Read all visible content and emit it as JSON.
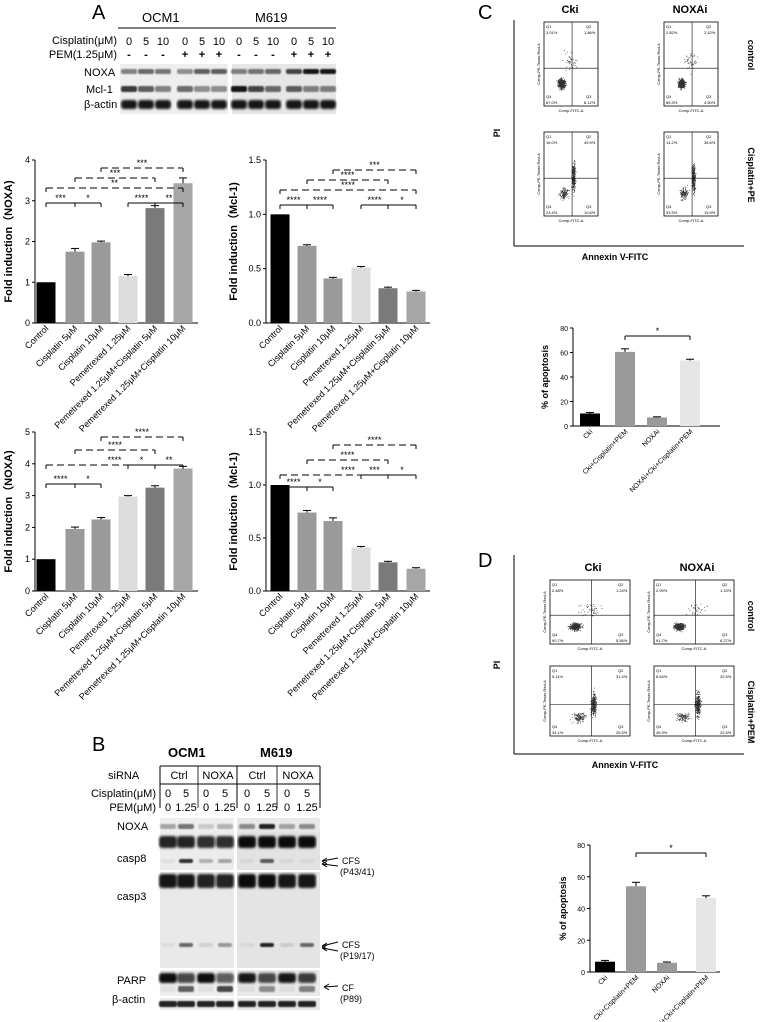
{
  "panel_A": {
    "letter": "A",
    "cell_lines": [
      "OCM1",
      "M619"
    ],
    "row_labels": {
      "cisplatin": "Cisplatin(μM)",
      "pem": "PEM(1.25μM)"
    },
    "cisplatin_values": [
      "0",
      "5",
      "10",
      "0",
      "5",
      "10",
      "0",
      "5",
      "10",
      "0",
      "5",
      "10"
    ],
    "pem_values": [
      "-",
      "-",
      "-",
      "+",
      "+",
      "+",
      "-",
      "-",
      "-",
      "+",
      "+",
      "+"
    ],
    "blot_labels": [
      "NOXA",
      "Mcl-1",
      "β-actin"
    ]
  },
  "panel_B": {
    "letter": "B",
    "cell_lines": [
      "OCM1",
      "M619"
    ],
    "sirna_label": "siRNA",
    "sirna_groups": [
      "Ctrl",
      "NOXA",
      "Ctrl",
      "NOXA"
    ],
    "cisplatin_label": "Cisplatin(μM)",
    "pem_label": "PEM(μM)",
    "cisplatin_values": [
      "0",
      "5",
      "0",
      "5",
      "0",
      "5",
      "0",
      "5"
    ],
    "pem_values": [
      "0",
      "1.25",
      "0",
      "1.25",
      "0",
      "1.25",
      "0",
      "1.25"
    ],
    "blot_labels": [
      "NOXA",
      "casp8",
      "casp3",
      "PARP",
      "β-actin"
    ],
    "annotations": [
      {
        "name": "CFS",
        "sub": "(P43/41)"
      },
      {
        "name": "CFS",
        "sub": "(P19/17)"
      },
      {
        "name": "CF",
        "sub": "(P89)"
      }
    ]
  },
  "panel_C": {
    "letter": "C",
    "columns": [
      "Cki",
      "NOXAi"
    ],
    "rows": [
      "control",
      "Cisplatin+PE"
    ],
    "x_axis": "Annexin V-FITC",
    "y_axis": "PI",
    "plot_x_label": "Comp-FITC-A",
    "plot_y_label": "Comp-PE-Texas Red-A",
    "quadrants": [
      {
        "q1": "3.01%",
        "q2": "1.86%",
        "q4": "87.0%",
        "q3": "8.12%"
      },
      {
        "q1": "2.82%",
        "q2": "2.42%",
        "q4": "85.3%",
        "q3": "4.50%"
      },
      {
        "q1": "16.0%",
        "q2": "49.9%",
        "q4": "23.4%",
        "q3": "10.6%"
      },
      {
        "q1": "14.2%",
        "q2": "36.6%",
        "q4": "33.3%",
        "q3": "15.9%"
      }
    ]
  },
  "panel_D": {
    "letter": "D",
    "columns": [
      "Cki",
      "NOXAi"
    ],
    "rows": [
      "control",
      "Cisplatin+PEM"
    ],
    "x_axis": "Annexin V-FITC",
    "y_axis": "PI",
    "plot_x_label": "Comp-FITC-A",
    "plot_y_label": "Comp-PE-Texas Red-A",
    "quadrants": [
      {
        "q1": "2.48%",
        "q2": "1.24%",
        "q4": "90.7%",
        "q3": "5.56%"
      },
      {
        "q1": "2.99%",
        "q2": "1.15%",
        "q4": "91.7%",
        "q3": "6.27%"
      },
      {
        "q1": "9.11%",
        "q2": "31.4%",
        "q4": "34.1%",
        "q3": "25.5%"
      },
      {
        "q1": "8.64%",
        "q2": "22.5%",
        "q4": "45.9%",
        "q3": "22.5%"
      }
    ]
  },
  "chart_data": [
    {
      "type": "bar",
      "ylabel": "Fold induction（NOXA)",
      "categories": [
        "Control",
        "Cisplatin 5μM",
        "Cisplatin 10μM",
        "Pemetrexed 1.25μM",
        "Pemetrexed 1.25μM+Cisplatin 5μM",
        "Pemetrexed 1.25μM+Cisplatin 10μM"
      ],
      "values": [
        1.0,
        1.75,
        1.98,
        1.15,
        2.82,
        3.43
      ],
      "errors": [
        0.0,
        0.08,
        0.03,
        0.04,
        0.06,
        0.13
      ],
      "colors": [
        "#000000",
        "#9a9a9a",
        "#9a9a9a",
        "#dcdcdc",
        "#7a7a7a",
        "#a6a6a6"
      ],
      "ylim": [
        0,
        4
      ],
      "yticks": [
        "0",
        "1",
        "2",
        "3",
        "4"
      ],
      "sig": [
        {
          "a": 0,
          "b": 1,
          "label": "***",
          "dashed": false
        },
        {
          "a": 1,
          "b": 2,
          "label": "*",
          "dashed": false
        },
        {
          "a": 0,
          "b": 5,
          "label": "**",
          "dashed": true
        },
        {
          "a": 3,
          "b": 4,
          "label": "****",
          "dashed": false
        },
        {
          "a": 4,
          "b": 5,
          "label": "**",
          "dashed": false
        },
        {
          "a": 1,
          "b": 4,
          "label": "***",
          "dashed": true
        },
        {
          "a": 2,
          "b": 5,
          "label": "***",
          "dashed": true
        }
      ]
    },
    {
      "type": "bar",
      "ylabel": "Fold induction（Mcl-1)",
      "categories": [
        "Control",
        "Cisplatin 5μM",
        "Cisplatin 10μM",
        "Pemetrexed 1.25μM",
        "Pemetrexed 1.25μM+Cisplatin 5μM",
        "Pemetrexed 1.25μM+Cisplatin 10μM"
      ],
      "values": [
        1.0,
        0.71,
        0.41,
        0.51,
        0.32,
        0.29
      ],
      "errors": [
        0.0,
        0.01,
        0.01,
        0.01,
        0.01,
        0.01
      ],
      "colors": [
        "#000000",
        "#9a9a9a",
        "#9a9a9a",
        "#dcdcdc",
        "#7a7a7a",
        "#a6a6a6"
      ],
      "ylim": [
        0,
        1.5
      ],
      "yticks": [
        "0.0",
        "0.5",
        "1.0",
        "1.5"
      ],
      "sig": [
        {
          "a": 0,
          "b": 1,
          "label": "****",
          "dashed": false
        },
        {
          "a": 1,
          "b": 2,
          "label": "****",
          "dashed": false
        },
        {
          "a": 0,
          "b": 5,
          "label": "****",
          "dashed": true
        },
        {
          "a": 3,
          "b": 4,
          "label": "****",
          "dashed": false
        },
        {
          "a": 4,
          "b": 5,
          "label": "*",
          "dashed": false
        },
        {
          "a": 1,
          "b": 4,
          "label": "****",
          "dashed": true
        },
        {
          "a": 2,
          "b": 5,
          "label": "***",
          "dashed": true
        }
      ]
    },
    {
      "type": "bar",
      "ylabel": "Fold induction（NOXA)",
      "categories": [
        "Control",
        "Cisplatin 5μM",
        "Cisplatin 10μM",
        "Pemetrexed 1.25μM",
        "Pemetrexed 1.25μM+Cisplatin 5μM",
        "Pemetrexed 1.25μM+Cisplatin 10μM"
      ],
      "values": [
        1.0,
        1.95,
        2.25,
        2.97,
        3.25,
        3.85
      ],
      "errors": [
        0.0,
        0.06,
        0.06,
        0.03,
        0.06,
        0.07
      ],
      "colors": [
        "#000000",
        "#9a9a9a",
        "#9a9a9a",
        "#dcdcdc",
        "#7a7a7a",
        "#a6a6a6"
      ],
      "ylim": [
        0,
        5
      ],
      "yticks": [
        "0",
        "1",
        "2",
        "3",
        "4",
        "5"
      ],
      "sig": [
        {
          "a": 0,
          "b": 1,
          "label": "****",
          "dashed": false
        },
        {
          "a": 1,
          "b": 2,
          "label": "*",
          "dashed": false
        },
        {
          "a": 0,
          "b": 5,
          "label": "****",
          "dashed": true
        },
        {
          "a": 3,
          "b": 4,
          "label": "*",
          "dashed": false
        },
        {
          "a": 4,
          "b": 5,
          "label": "**",
          "dashed": false
        },
        {
          "a": 1,
          "b": 4,
          "label": "****",
          "dashed": true
        },
        {
          "a": 2,
          "b": 5,
          "label": "****",
          "dashed": true
        }
      ]
    },
    {
      "type": "bar",
      "ylabel": "Fold induction（Mcl-1)",
      "categories": [
        "Control",
        "Cisplatin 5μM",
        "Cisplatin 10μM",
        "Pemetrexed 1.25μM",
        "Pemetrexed 1.25μM+Cisplatin 5μM",
        "Pemetrexed 1.25μM+Cisplatin 10μM"
      ],
      "values": [
        1.0,
        0.74,
        0.66,
        0.41,
        0.27,
        0.21
      ],
      "errors": [
        0.0,
        0.02,
        0.03,
        0.01,
        0.01,
        0.01
      ],
      "colors": [
        "#000000",
        "#9a9a9a",
        "#9a9a9a",
        "#dcdcdc",
        "#7a7a7a",
        "#a6a6a6"
      ],
      "ylim": [
        0,
        1.5
      ],
      "yticks": [
        "0.0",
        "0.5",
        "1.0",
        "1.5"
      ],
      "sig": [
        {
          "a": 0,
          "b": 1,
          "label": "****",
          "dashed": false
        },
        {
          "a": 1,
          "b": 2,
          "label": "*",
          "dashed": false
        },
        {
          "a": 0,
          "b": 5,
          "label": "****",
          "dashed": true
        },
        {
          "a": 3,
          "b": 4,
          "label": "***",
          "dashed": false
        },
        {
          "a": 4,
          "b": 5,
          "label": "*",
          "dashed": false
        },
        {
          "a": 1,
          "b": 4,
          "label": "****",
          "dashed": true
        },
        {
          "a": 2,
          "b": 5,
          "label": "****",
          "dashed": true
        }
      ]
    },
    {
      "type": "bar",
      "ylabel": "% of apoptosis",
      "categories": [
        "Cki",
        "Cki+Cisplatin+PEM",
        "NOXAi",
        "NOXAi+Cki+Cisplatin+PEM"
      ],
      "values": [
        10.2,
        60.5,
        7.0,
        53.5
      ],
      "errors": [
        0.8,
        2.5,
        0.5,
        1.0
      ],
      "colors": [
        "#000000",
        "#9a9a9a",
        "#9a9a9a",
        "#e6e6e6"
      ],
      "ylim": [
        0,
        80
      ],
      "yticks": [
        "0",
        "20",
        "40",
        "60",
        "80"
      ],
      "sig": [
        {
          "a": 1,
          "b": 3,
          "label": "*",
          "dashed": false
        }
      ]
    },
    {
      "type": "bar",
      "ylabel": "% of apoptosis",
      "categories": [
        "Cki",
        "Cki+Cisplatin+PEM",
        "NOXAi",
        "NOXAi+Cki+Cisplatin+PEM"
      ],
      "values": [
        6.5,
        54.0,
        5.8,
        46.5
      ],
      "errors": [
        0.8,
        2.5,
        0.5,
        1.5
      ],
      "colors": [
        "#000000",
        "#9a9a9a",
        "#9a9a9a",
        "#e6e6e6"
      ],
      "ylim": [
        0,
        80
      ],
      "yticks": [
        "0",
        "20",
        "40",
        "60",
        "80"
      ],
      "sig": [
        {
          "a": 1,
          "b": 3,
          "label": "*",
          "dashed": false
        }
      ]
    }
  ]
}
